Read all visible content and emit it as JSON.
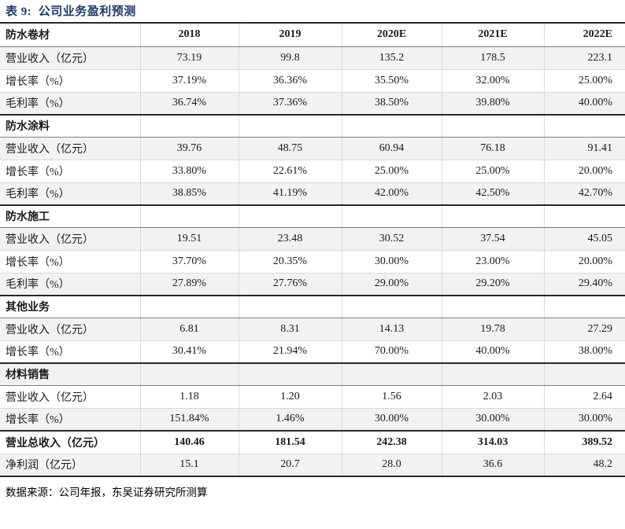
{
  "page": {
    "title": "表 9:  公司业务盈利预测",
    "source_note": "数据来源：公司年报，东吴证券研究所测算"
  },
  "colors": {
    "title_navy": "#1f3864",
    "band_gray": "#f2f2f2",
    "heavy_rule": "#24292e",
    "medium_rule": "#808080",
    "light_rule": "#d9d9d9"
  },
  "table": {
    "columns": [
      "2018",
      "2019",
      "2020E",
      "2021E",
      "2022E"
    ],
    "sections": [
      {
        "name": "防水卷材",
        "rows": [
          {
            "label": "营业收入（亿元）",
            "values": [
              "73.19",
              "99.8",
              "135.2",
              "178.5",
              "223.1"
            ]
          },
          {
            "label": "增长率（%）",
            "values": [
              "37.19%",
              "36.36%",
              "35.50%",
              "32.00%",
              "25.00%"
            ]
          },
          {
            "label": "毛利率（%）",
            "values": [
              "36.74%",
              "37.36%",
              "38.50%",
              "39.80%",
              "40.00%"
            ]
          }
        ]
      },
      {
        "name": "防水涂料",
        "rows": [
          {
            "label": "营业收入（亿元）",
            "values": [
              "39.76",
              "48.75",
              "60.94",
              "76.18",
              "91.41"
            ]
          },
          {
            "label": "增长率（%）",
            "values": [
              "33.80%",
              "22.61%",
              "25.00%",
              "25.00%",
              "20.00%"
            ]
          },
          {
            "label": "毛利率（%）",
            "values": [
              "38.85%",
              "41.19%",
              "42.00%",
              "42.50%",
              "42.70%"
            ]
          }
        ]
      },
      {
        "name": "防水施工",
        "rows": [
          {
            "label": "营业收入（亿元）",
            "values": [
              "19.51",
              "23.48",
              "30.52",
              "37.54",
              "45.05"
            ]
          },
          {
            "label": "增长率（%）",
            "values": [
              "37.70%",
              "20.35%",
              "30.00%",
              "23.00%",
              "20.00%"
            ]
          },
          {
            "label": "毛利率（%）",
            "values": [
              "27.89%",
              "27.76%",
              "29.00%",
              "29.20%",
              "29.40%"
            ]
          }
        ]
      },
      {
        "name": "其他业务",
        "rows": [
          {
            "label": "营业收入（亿元）",
            "values": [
              "6.81",
              "8.31",
              "14.13",
              "19.78",
              "27.29"
            ]
          },
          {
            "label": "增长率（%）",
            "values": [
              "30.41%",
              "21.94%",
              "70.00%",
              "40.00%",
              "38.00%"
            ]
          }
        ]
      },
      {
        "name": "材料销售",
        "rows": [
          {
            "label": "营业收入（亿元）",
            "values": [
              "1.18",
              "1.20",
              "1.56",
              "2.03",
              "2.64"
            ]
          },
          {
            "label": "增长率（%）",
            "values": [
              "151.84%",
              "1.46%",
              "30.00%",
              "30.00%",
              "30.00%"
            ]
          }
        ]
      }
    ],
    "totals": [
      {
        "label": "营业总收入（亿元）",
        "values": [
          "140.46",
          "181.54",
          "242.38",
          "314.03",
          "389.52"
        ]
      },
      {
        "label": "净利润（亿元）",
        "values": [
          "15.1",
          "20.7",
          "28.0",
          "36.6",
          "48.2"
        ]
      }
    ]
  }
}
